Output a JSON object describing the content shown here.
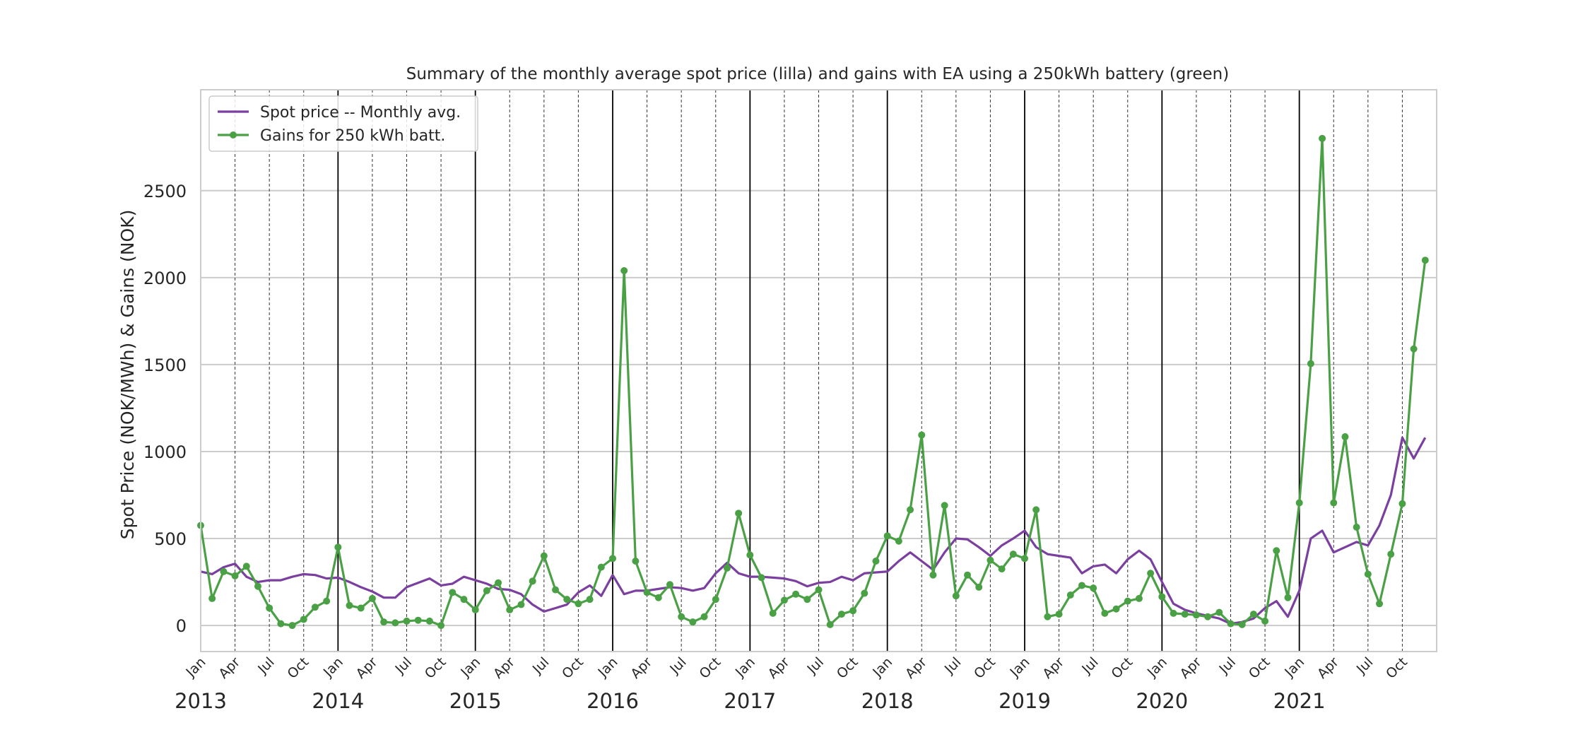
{
  "chart_data": {
    "type": "line",
    "title": "Summary of the monthly average spot price (lilla) and gains with EA using a 250kWh battery (green)",
    "xlabel": "",
    "ylabel": "Spot Price (NOK/MWh) & Gains (NOK)",
    "x_start": "2013-01",
    "x_end": "2021-12",
    "ylim": [
      -150,
      3080
    ],
    "yticks": [
      0,
      500,
      1000,
      1500,
      2000,
      2500
    ],
    "month_tick_labels": [
      "Jan",
      "Apr",
      "Jul",
      "Oct"
    ],
    "year_labels": [
      "2013",
      "2014",
      "2015",
      "2016",
      "2017",
      "2018",
      "2019",
      "2020",
      "2021"
    ],
    "grid": true,
    "legend_position": "upper left",
    "series": [
      {
        "name": "Spot price -- Monthly avg.",
        "color": "#7b3fa0",
        "marker": "none",
        "x": [
          "2013-01",
          "2013-02",
          "2013-03",
          "2013-04",
          "2013-05",
          "2013-06",
          "2013-07",
          "2013-08",
          "2013-09",
          "2013-10",
          "2013-11",
          "2013-12",
          "2014-01",
          "2014-02",
          "2014-03",
          "2014-04",
          "2014-05",
          "2014-06",
          "2014-07",
          "2014-08",
          "2014-09",
          "2014-10",
          "2014-11",
          "2014-12",
          "2015-01",
          "2015-02",
          "2015-03",
          "2015-04",
          "2015-05",
          "2015-06",
          "2015-07",
          "2015-08",
          "2015-09",
          "2015-10",
          "2015-11",
          "2015-12",
          "2016-01",
          "2016-02",
          "2016-03",
          "2016-04",
          "2016-05",
          "2016-06",
          "2016-07",
          "2016-08",
          "2016-09",
          "2016-10",
          "2016-11",
          "2016-12",
          "2017-01",
          "2017-02",
          "2017-03",
          "2017-04",
          "2017-05",
          "2017-06",
          "2017-07",
          "2017-08",
          "2017-09",
          "2017-10",
          "2017-11",
          "2017-12",
          "2018-01",
          "2018-02",
          "2018-03",
          "2018-04",
          "2018-05",
          "2018-06",
          "2018-07",
          "2018-08",
          "2018-09",
          "2018-10",
          "2018-11",
          "2018-12",
          "2019-01",
          "2019-02",
          "2019-03",
          "2019-04",
          "2019-05",
          "2019-06",
          "2019-07",
          "2019-08",
          "2019-09",
          "2019-10",
          "2019-11",
          "2019-12",
          "2020-01",
          "2020-02",
          "2020-03",
          "2020-04",
          "2020-05",
          "2020-06",
          "2020-07",
          "2020-08",
          "2020-09",
          "2020-10",
          "2020-11",
          "2020-12",
          "2021-01",
          "2021-02",
          "2021-03",
          "2021-04",
          "2021-05",
          "2021-06",
          "2021-07",
          "2021-08",
          "2021-09",
          "2021-10",
          "2021-11",
          "2021-12"
        ],
        "values": [
          310,
          295,
          335,
          355,
          280,
          250,
          260,
          260,
          280,
          295,
          290,
          270,
          275,
          250,
          220,
          195,
          160,
          160,
          220,
          245,
          270,
          230,
          240,
          280,
          260,
          240,
          210,
          205,
          180,
          120,
          80,
          100,
          120,
          190,
          230,
          170,
          290,
          180,
          200,
          200,
          210,
          220,
          215,
          200,
          215,
          300,
          360,
          300,
          280,
          280,
          275,
          270,
          255,
          225,
          245,
          250,
          280,
          260,
          300,
          305,
          310,
          370,
          420,
          370,
          320,
          420,
          500,
          495,
          450,
          400,
          460,
          500,
          545,
          450,
          410,
          400,
          390,
          300,
          340,
          350,
          300,
          380,
          430,
          380,
          250,
          125,
          90,
          70,
          55,
          40,
          10,
          20,
          40,
          100,
          140,
          50,
          200,
          500,
          545,
          420,
          450,
          480,
          460,
          575,
          750,
          1080,
          960,
          1080
        ]
      },
      {
        "name": "Gains for 250 kWh batt.",
        "color": "#4aa044",
        "marker": "circle",
        "x": [
          "2013-01",
          "2013-02",
          "2013-03",
          "2013-04",
          "2013-05",
          "2013-06",
          "2013-07",
          "2013-08",
          "2013-09",
          "2013-10",
          "2013-11",
          "2013-12",
          "2014-01",
          "2014-02",
          "2014-03",
          "2014-04",
          "2014-05",
          "2014-06",
          "2014-07",
          "2014-08",
          "2014-09",
          "2014-10",
          "2014-11",
          "2014-12",
          "2015-01",
          "2015-02",
          "2015-03",
          "2015-04",
          "2015-05",
          "2015-06",
          "2015-07",
          "2015-08",
          "2015-09",
          "2015-10",
          "2015-11",
          "2015-12",
          "2016-01",
          "2016-02",
          "2016-03",
          "2016-04",
          "2016-05",
          "2016-06",
          "2016-07",
          "2016-08",
          "2016-09",
          "2016-10",
          "2016-11",
          "2016-12",
          "2017-01",
          "2017-02",
          "2017-03",
          "2017-04",
          "2017-05",
          "2017-06",
          "2017-07",
          "2017-08",
          "2017-09",
          "2017-10",
          "2017-11",
          "2017-12",
          "2018-01",
          "2018-02",
          "2018-03",
          "2018-04",
          "2018-05",
          "2018-06",
          "2018-07",
          "2018-08",
          "2018-09",
          "2018-10",
          "2018-11",
          "2018-12",
          "2019-01",
          "2019-02",
          "2019-03",
          "2019-04",
          "2019-05",
          "2019-06",
          "2019-07",
          "2019-08",
          "2019-09",
          "2019-10",
          "2019-11",
          "2019-12",
          "2020-01",
          "2020-02",
          "2020-03",
          "2020-04",
          "2020-05",
          "2020-06",
          "2020-07",
          "2020-08",
          "2020-09",
          "2020-10",
          "2020-11",
          "2020-12",
          "2021-01",
          "2021-02",
          "2021-03",
          "2021-04",
          "2021-05",
          "2021-06",
          "2021-07",
          "2021-08",
          "2021-09",
          "2021-10",
          "2021-11",
          "2021-12"
        ],
        "values": [
          575,
          155,
          310,
          285,
          340,
          225,
          100,
          10,
          0,
          35,
          105,
          140,
          450,
          115,
          100,
          155,
          20,
          15,
          25,
          30,
          25,
          0,
          190,
          150,
          90,
          200,
          245,
          90,
          120,
          255,
          400,
          205,
          150,
          125,
          150,
          335,
          385,
          2040,
          370,
          190,
          160,
          235,
          50,
          20,
          50,
          150,
          330,
          645,
          405,
          275,
          70,
          145,
          180,
          150,
          205,
          5,
          65,
          85,
          185,
          370,
          515,
          485,
          665,
          1095,
          290,
          690,
          170,
          290,
          220,
          375,
          325,
          410,
          385,
          665,
          50,
          65,
          175,
          230,
          215,
          70,
          95,
          140,
          155,
          300,
          165,
          70,
          65,
          60,
          50,
          75,
          10,
          5,
          65,
          25,
          430,
          160,
          705,
          1505,
          2800,
          705,
          1085,
          565,
          295,
          125,
          410,
          700,
          1590,
          2100
        ]
      }
    ]
  }
}
